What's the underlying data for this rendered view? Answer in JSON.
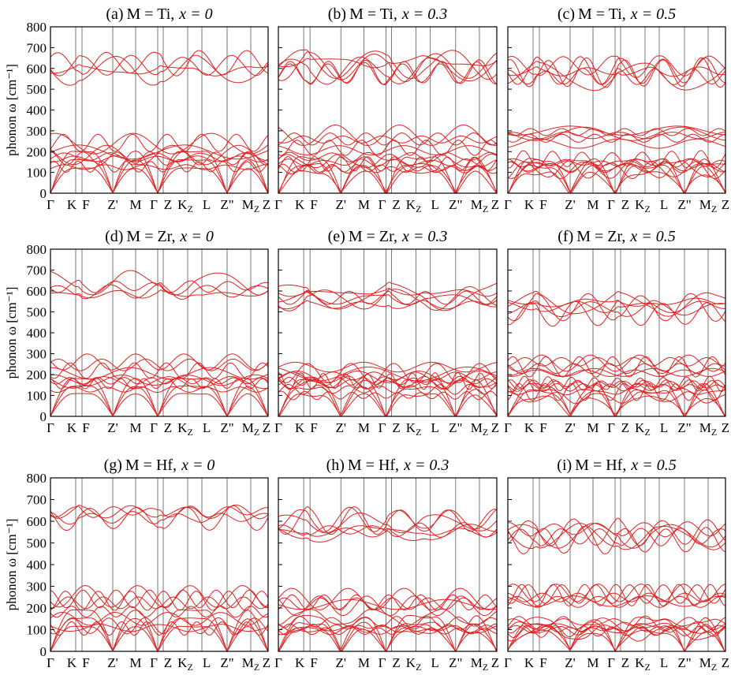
{
  "figure": {
    "ylabel": "phonon ω [cm⁻¹]",
    "yticks": [
      "0",
      "100",
      "200",
      "300",
      "400",
      "500",
      "600",
      "700",
      "800"
    ],
    "xticks": [
      "Γ",
      "K",
      "F",
      "Z'",
      "M",
      "Γ",
      "Z",
      "K_Z",
      "L",
      "Z\"",
      "M_Z",
      "Z"
    ],
    "line_color": "#dd2222"
  },
  "chart_data": [
    {
      "id": "a",
      "type": "line",
      "title": "(a) M = Ti, x = 0",
      "title_parts": {
        "tag": "(a)",
        "M": "M = Ti,",
        "xeq": "x = 0"
      },
      "ylim": [
        0,
        800
      ],
      "optical_center": 630,
      "optical_spread": 90,
      "mid_center": 230,
      "mid_spread": 100,
      "acoustic_max": 200,
      "disorder": 0.1
    },
    {
      "id": "b",
      "type": "line",
      "title": "(b) M = Ti, x = 0.3",
      "title_parts": {
        "tag": "(b)",
        "M": "M = Ti,",
        "xeq": "x = 0.3"
      },
      "ylim": [
        0,
        800
      ],
      "optical_center": 600,
      "optical_spread": 70,
      "mid_center": 250,
      "mid_spread": 90,
      "acoustic_max": 170,
      "disorder": 0.4
    },
    {
      "id": "c",
      "type": "line",
      "title": "(c) M = Ti, x = 0.5",
      "title_parts": {
        "tag": "(c)",
        "M": "M = Ti,",
        "xeq": "x = 0.5"
      },
      "ylim": [
        0,
        800
      ],
      "optical_center": 590,
      "optical_spread": 60,
      "mid_center": 270,
      "mid_spread": 90,
      "acoustic_max": 160,
      "disorder": 0.5
    },
    {
      "id": "d",
      "type": "line",
      "title": "(d) M = Zr, x = 0",
      "title_parts": {
        "tag": "(d)",
        "M": "M = Zr,",
        "xeq": "x = 0"
      },
      "ylim": [
        0,
        800
      ],
      "optical_center": 600,
      "optical_spread": 100,
      "mid_center": 230,
      "mid_spread": 80,
      "acoustic_max": 180,
      "disorder": 0.1
    },
    {
      "id": "e",
      "type": "line",
      "title": "(e) M = Zr, x = 0.3",
      "title_parts": {
        "tag": "(e)",
        "M": "M = Zr,",
        "xeq": "x = 0.3"
      },
      "ylim": [
        0,
        800
      ],
      "optical_center": 560,
      "optical_spread": 70,
      "mid_center": 220,
      "mid_spread": 70,
      "acoustic_max": 170,
      "disorder": 0.4
    },
    {
      "id": "f",
      "type": "line",
      "title": "(f) M = Zr, x = 0.5",
      "title_parts": {
        "tag": "(f)",
        "M": "M = Zr,",
        "xeq": "x = 0.5"
      },
      "ylim": [
        0,
        800
      ],
      "optical_center": 530,
      "optical_spread": 80,
      "mid_center": 230,
      "mid_spread": 80,
      "acoustic_max": 150,
      "disorder": 0.5
    },
    {
      "id": "g",
      "type": "line",
      "title": "(g) M = Hf, x = 0",
      "title_parts": {
        "tag": "(g)",
        "M": "M = Hf,",
        "xeq": "x = 0"
      },
      "ylim": [
        0,
        800
      ],
      "optical_center": 630,
      "optical_spread": 100,
      "mid_center": 240,
      "mid_spread": 50,
      "acoustic_max": 190,
      "disorder": 0.1
    },
    {
      "id": "h",
      "type": "line",
      "title": "(h) M = Hf, x = 0.3",
      "title_parts": {
        "tag": "(h)",
        "M": "M = Hf,",
        "xeq": "x = 0.3"
      },
      "ylim": [
        0,
        800
      ],
      "optical_center": 580,
      "optical_spread": 80,
      "mid_center": 220,
      "mid_spread": 50,
      "acoustic_max": 160,
      "disorder": 0.4
    },
    {
      "id": "i",
      "type": "line",
      "title": "(i) M = Hf, x = 0.5",
      "title_parts": {
        "tag": "(i)",
        "M": "M = Hf,",
        "xeq": "x = 0.5"
      },
      "ylim": [
        0,
        800
      ],
      "optical_center": 540,
      "optical_spread": 80,
      "mid_center": 250,
      "mid_spread": 60,
      "acoustic_max": 150,
      "disorder": 0.5
    }
  ]
}
